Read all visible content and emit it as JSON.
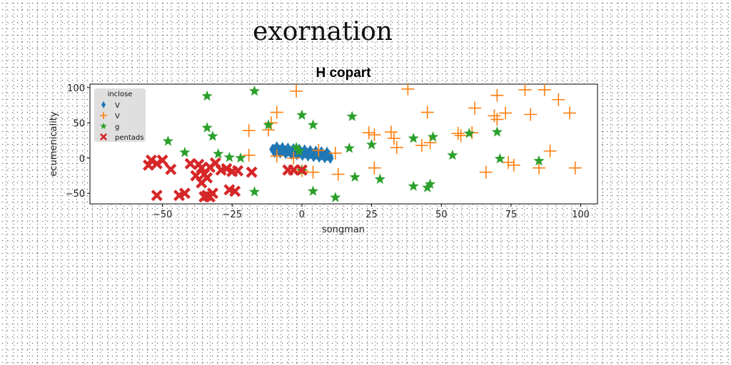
{
  "page": {
    "title": "exornation"
  },
  "chart_data": {
    "type": "scatter",
    "title": "H copart",
    "xlabel": "songman",
    "ylabel": "ecumenicality",
    "xlim": [
      -76,
      106
    ],
    "ylim": [
      -65,
      105
    ],
    "xticks": [
      -50,
      -25,
      0,
      25,
      50,
      75,
      100
    ],
    "yticks": [
      -50,
      0,
      50,
      100
    ],
    "xtick_labels": [
      "−50",
      "−25",
      "0",
      "25",
      "50",
      "75",
      "100"
    ],
    "ytick_labels": [
      "−50",
      "0",
      "50",
      "100"
    ],
    "grid": false,
    "legend": {
      "title": "inclose",
      "placement": "upper-left"
    },
    "series": [
      {
        "name": "V",
        "marker": "thin_diamond",
        "color": "#1f77b4",
        "x": [
          -10.5,
          -10,
          -9.5,
          -9,
          -8.5,
          -8,
          -7.5,
          -7,
          -6.5,
          -6,
          -5.5,
          -5,
          -4.5,
          -4,
          -3.5,
          -3,
          -2.5,
          -2,
          -1.5,
          -1,
          -0.5,
          0,
          0.5,
          1,
          1.5,
          2,
          2.5,
          3,
          3.5,
          4,
          4.5,
          5,
          5.5,
          6,
          6.5,
          7,
          7.5,
          8,
          8.5,
          9,
          9.5,
          10,
          -9.8,
          -7.8,
          -5.8,
          -3.8,
          -1.8,
          0.2,
          2.2,
          4.2,
          6.2,
          8.2,
          10.2,
          -9.0,
          -7.0,
          -5.0,
          -3.0,
          -1.0,
          1.0,
          3.0,
          5.0,
          7.0,
          9.0
        ],
        "y": [
          12.4,
          12.2,
          12.0,
          11.8,
          11.6,
          11.3,
          11.1,
          10.9,
          10.7,
          10.4,
          10.2,
          10.0,
          9.8,
          9.5,
          9.3,
          9.1,
          8.9,
          8.6,
          8.4,
          8.2,
          8.0,
          7.7,
          7.5,
          7.3,
          7.1,
          6.8,
          6.6,
          6.4,
          6.2,
          5.9,
          5.7,
          5.5,
          5.3,
          5.0,
          4.8,
          4.6,
          4.4,
          4.1,
          3.9,
          3.7,
          3.5,
          3.2,
          8.1,
          7.3,
          6.5,
          5.6,
          4.8,
          3.9,
          3.1,
          2.2,
          1.4,
          0.5,
          -0.3,
          15.8,
          14.9,
          14.1,
          13.2,
          12.4,
          11.5,
          10.7,
          9.8,
          9.0,
          8.1
        ]
      },
      {
        "name": "V",
        "marker": "plus",
        "color": "#ff7f0e",
        "x": [
          -2,
          38,
          70,
          80,
          87,
          92,
          96,
          -9,
          45,
          62,
          69,
          73,
          82,
          -19,
          -11,
          -12,
          24,
          26,
          33,
          32,
          34,
          43,
          46,
          56,
          57,
          61,
          89,
          -19,
          -9,
          -3,
          6,
          12,
          0,
          4,
          13,
          26,
          66,
          74,
          76,
          85,
          98,
          70
        ],
        "y": [
          95,
          98,
          89,
          97,
          97,
          83,
          64,
          65,
          65,
          71,
          60,
          64,
          62,
          39,
          50,
          40,
          36,
          33,
          28,
          37,
          15,
          18,
          22,
          35,
          32,
          36,
          10,
          4,
          3,
          0,
          11,
          7,
          -18,
          -20,
          -23,
          -14,
          -20,
          -6,
          -10,
          -14,
          -14,
          55
        ]
      },
      {
        "name": "g",
        "marker": "star",
        "color": "#2ca02c",
        "x": [
          -34,
          -17,
          0,
          4,
          18,
          -34,
          -32,
          -12,
          -48,
          -42,
          -30,
          -26,
          -22,
          0,
          -2,
          17,
          25,
          40,
          47,
          60,
          70,
          54,
          71,
          85,
          -1,
          19,
          28,
          40,
          45,
          46,
          -17,
          4,
          12
        ],
        "y": [
          88,
          95,
          61,
          47,
          59,
          43,
          31,
          47,
          24,
          8,
          6,
          1,
          0,
          -18,
          15,
          14,
          19,
          28,
          30,
          35,
          37,
          4,
          -1,
          -4,
          10,
          -27,
          -30,
          -40,
          -42,
          -37,
          -48,
          -47,
          -56
        ]
      },
      {
        "name": "pentads",
        "marker": "X",
        "color": "#d62728",
        "x": [
          -54,
          -52,
          -50,
          -55,
          -47,
          -40,
          -37,
          -36,
          -35,
          -33,
          -31,
          -29,
          -27,
          -25,
          -23,
          -18,
          -5,
          -3,
          0,
          -34,
          -36,
          -38,
          -32,
          -34,
          -26,
          -24,
          -52,
          -44,
          -42,
          -35,
          -33
        ],
        "y": [
          -3,
          -8,
          -3,
          -10,
          -16,
          -8,
          -9,
          -14,
          -23,
          -13,
          -7,
          -17,
          -15,
          -19,
          -18,
          -20,
          -17,
          -17,
          -17,
          -28,
          -35,
          -25,
          -50,
          -53,
          -45,
          -47,
          -53,
          -53,
          -50,
          -55,
          -55
        ]
      }
    ]
  }
}
